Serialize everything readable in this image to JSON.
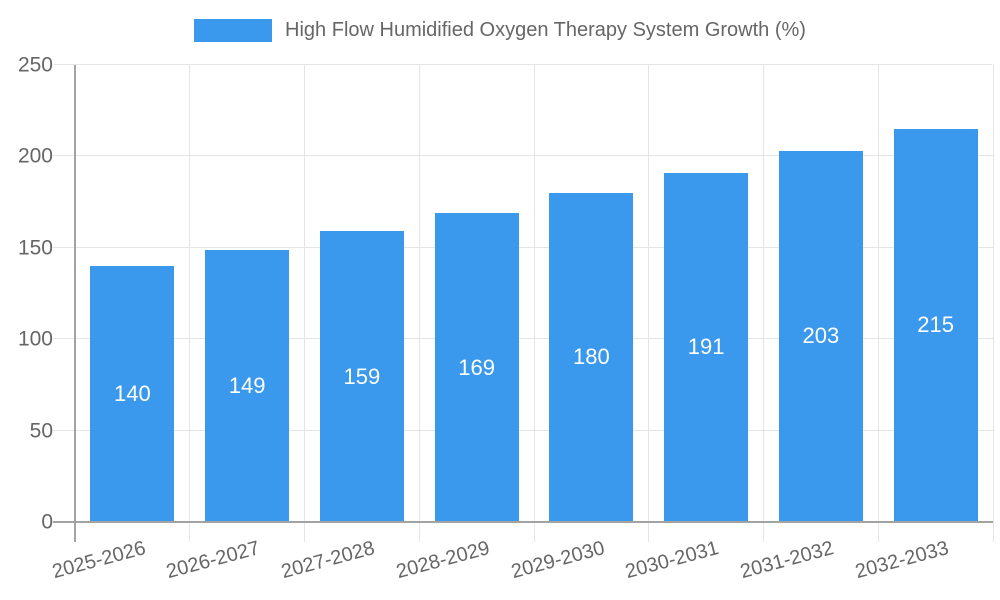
{
  "chart_data": {
    "type": "bar",
    "title": "High Flow Humidified Oxygen Therapy System Growth (%)",
    "categories": [
      "2025-2026",
      "2026-2027",
      "2027-2028",
      "2028-2029",
      "2029-2030",
      "2030-2031",
      "2031-2032",
      "2032-2033"
    ],
    "values": [
      140,
      149,
      159,
      169,
      180,
      191,
      203,
      215
    ],
    "xlabel": "",
    "ylabel": "",
    "ylim": [
      0,
      250
    ],
    "y_ticks": [
      0,
      50,
      100,
      150,
      200,
      250
    ],
    "legend_position": "top",
    "grid": true,
    "value_labels": "centered-inside-bars",
    "x_label_rotation_deg": -15,
    "colors": {
      "bar": "#3A99EC",
      "value_label": "#FFFFFF",
      "axis_text": "#666666",
      "gridline": "#E5E5E5",
      "axis_line": "#A3A3A3",
      "background": "#FFFFFF"
    }
  }
}
